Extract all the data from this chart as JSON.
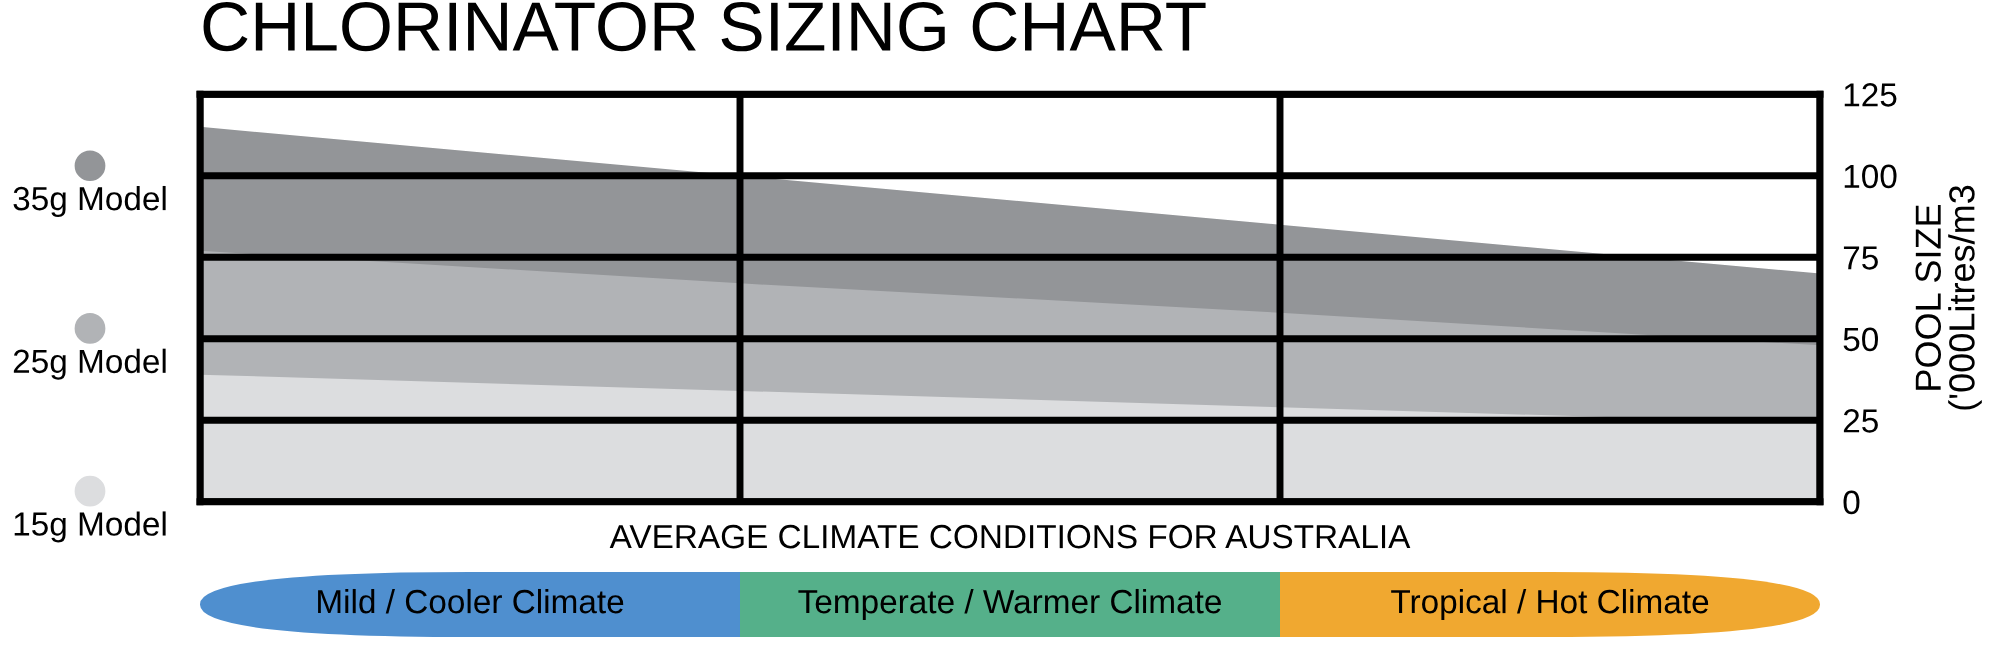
{
  "chart_data": {
    "type": "area",
    "title": "CHLORINATOR SIZING CHART",
    "xlabel": "AVERAGE CLIMATE CONDITIONS FOR AUSTRALIA",
    "ylabel": "POOL SIZE\n('000Litres/m3",
    "categories": [
      null,
      null,
      null,
      null
    ],
    "ylim": [
      0,
      125
    ],
    "yticks": [
      0,
      25,
      50,
      75,
      100,
      125
    ],
    "tick_labels": "y",
    "grid": true,
    "legend": "left",
    "series": [
      {
        "name": "35g Model",
        "color": "#939598",
        "values": [
          115,
          100,
          85,
          70
        ]
      },
      {
        "name": "25g Model",
        "color": "#b1b3b6",
        "values": [
          77,
          67,
          58,
          48
        ]
      },
      {
        "name": "15g Model",
        "color": "#dcdddf",
        "values": [
          39,
          34,
          29,
          24
        ]
      }
    ],
    "annotations": [
      "Mild / Cooler Climate",
      "Temperate / Warmer Climate",
      "Tropical / Hot Climate"
    ]
  }
}
